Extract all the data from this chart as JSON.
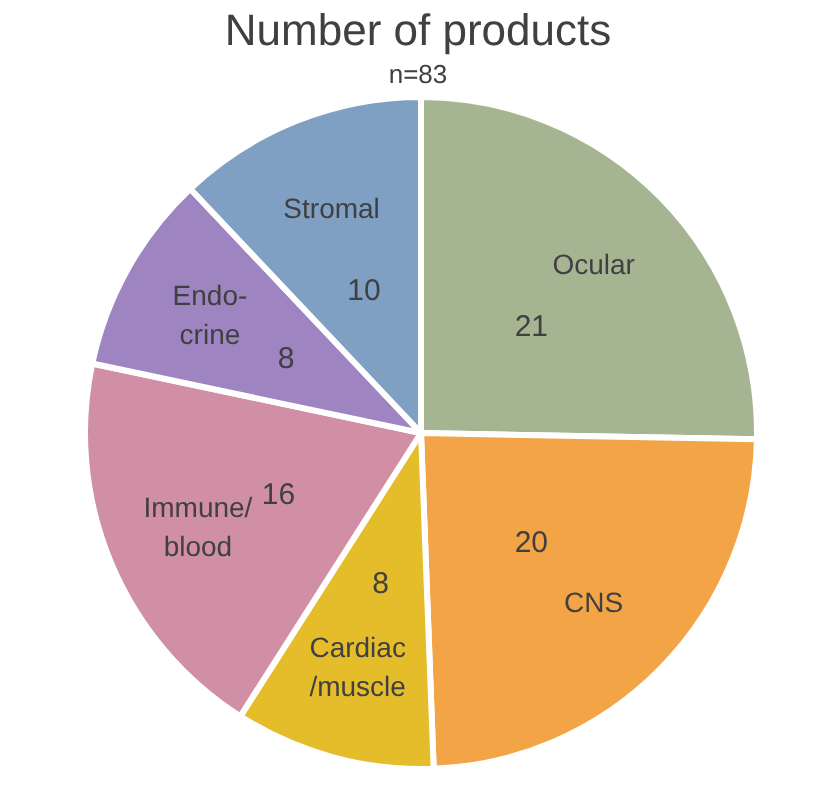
{
  "chart_data": {
    "type": "pie",
    "title": "Number of products",
    "subtitle": "n=83",
    "categories": [
      "Ocular",
      "CNS",
      "Cardiac\n/muscle",
      "Immune/\nblood",
      "Endo-\ncrine",
      "Stromal"
    ],
    "values": [
      21,
      20,
      8,
      16,
      8,
      10
    ],
    "colors": [
      "#a5b592",
      "#f2a446",
      "#e5bd2b",
      "#d08fa5",
      "#9e84c1",
      "#7f9fc3"
    ],
    "data_labels": true
  }
}
